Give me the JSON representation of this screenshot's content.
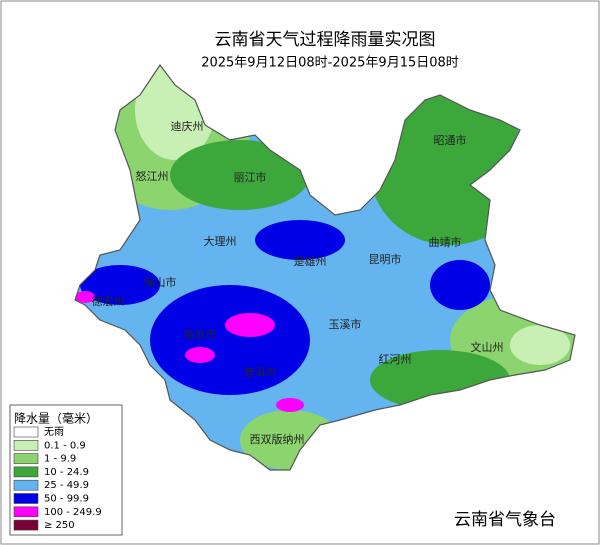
{
  "header": {
    "title": "云南省天气过程降雨量实况图",
    "subtitle": "2025年9月12日08时-2025年9月15日08时"
  },
  "map": {
    "labels": [
      "迪庆州",
      "怒江州",
      "丽江市",
      "昭通市",
      "大理州",
      "楚雄州",
      "昆明市",
      "曲靖市",
      "保山市",
      "德宏州",
      "临沧市",
      "玉溪市",
      "红河州",
      "文山州",
      "普洱市",
      "西双版纳州"
    ]
  },
  "legend": {
    "title": "降水量（毫米）",
    "items": [
      {
        "label": "无雨",
        "color": "#ffffff"
      },
      {
        "label": "0.1 - 0.9",
        "color": "#c8f0b4"
      },
      {
        "label": "1 -  9.9",
        "color": "#8cd46e"
      },
      {
        "label": "10 - 24.9",
        "color": "#3ca83c"
      },
      {
        "label": "25 - 49.9",
        "color": "#64b4f0"
      },
      {
        "label": "50 - 99.9",
        "color": "#0000e6"
      },
      {
        "label": "100 - 249.9",
        "color": "#ff00ff"
      },
      {
        "label": "≥ 250",
        "color": "#7a0038"
      }
    ]
  },
  "footer": "云南省气象台"
}
